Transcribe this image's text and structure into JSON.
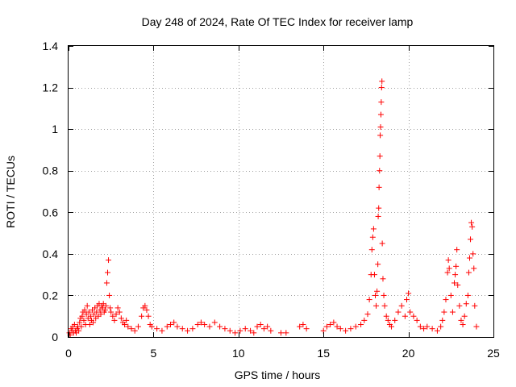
{
  "chart_data": {
    "type": "scatter",
    "title": "Day 248 of 2024, Rate Of TEC Index for receiver lamp",
    "xlabel": "GPS time / hours",
    "ylabel": "ROTI / TECUs",
    "xlim": [
      0,
      25
    ],
    "ylim": [
      0,
      1.4
    ],
    "xticks": [
      "0",
      "5",
      "10",
      "15",
      "20",
      "25"
    ],
    "yticks": [
      "0",
      "0.2",
      "0.4",
      "0.6",
      "0.8",
      "1",
      "1.2",
      "1.4"
    ],
    "grid": true,
    "marker": "+",
    "color": "#ff0000",
    "series": [
      {
        "points": [
          [
            0.05,
            0.02
          ],
          [
            0.1,
            0.01
          ],
          [
            0.15,
            0.04
          ],
          [
            0.2,
            0.03
          ],
          [
            0.25,
            0.05
          ],
          [
            0.3,
            0.02
          ],
          [
            0.35,
            0.06
          ],
          [
            0.4,
            0.03
          ],
          [
            0.45,
            0.02
          ],
          [
            0.5,
            0.04
          ],
          [
            0.55,
            0.05
          ],
          [
            0.6,
            0.03
          ],
          [
            0.65,
            0.07
          ],
          [
            0.7,
            0.09
          ],
          [
            0.75,
            0.05
          ],
          [
            0.8,
            0.1
          ],
          [
            0.85,
            0.12
          ],
          [
            0.9,
            0.08
          ],
          [
            0.95,
            0.13
          ],
          [
            1.0,
            0.06
          ],
          [
            1.05,
            0.11
          ],
          [
            1.1,
            0.15
          ],
          [
            1.15,
            0.09
          ],
          [
            1.2,
            0.12
          ],
          [
            1.25,
            0.06
          ],
          [
            1.3,
            0.1
          ],
          [
            1.35,
            0.08
          ],
          [
            1.4,
            0.13
          ],
          [
            1.45,
            0.07
          ],
          [
            1.5,
            0.11
          ],
          [
            1.55,
            0.14
          ],
          [
            1.6,
            0.09
          ],
          [
            1.65,
            0.12
          ],
          [
            1.7,
            0.15
          ],
          [
            1.75,
            0.1
          ],
          [
            1.8,
            0.16
          ],
          [
            1.85,
            0.13
          ],
          [
            1.9,
            0.11
          ],
          [
            1.95,
            0.15
          ],
          [
            2.0,
            0.14
          ],
          [
            2.05,
            0.16
          ],
          [
            2.1,
            0.12
          ],
          [
            2.15,
            0.13
          ],
          [
            2.2,
            0.15
          ],
          [
            2.25,
            0.26
          ],
          [
            2.3,
            0.31
          ],
          [
            2.35,
            0.37
          ],
          [
            2.4,
            0.2
          ],
          [
            2.45,
            0.14
          ],
          [
            2.5,
            0.12
          ],
          [
            2.6,
            0.1
          ],
          [
            2.7,
            0.08
          ],
          [
            2.8,
            0.11
          ],
          [
            2.9,
            0.14
          ],
          [
            3.0,
            0.12
          ],
          [
            3.1,
            0.09
          ],
          [
            3.2,
            0.07
          ],
          [
            3.3,
            0.06
          ],
          [
            3.4,
            0.08
          ],
          [
            3.5,
            0.05
          ],
          [
            3.7,
            0.04
          ],
          [
            3.9,
            0.03
          ],
          [
            4.1,
            0.05
          ],
          [
            4.3,
            0.1
          ],
          [
            4.4,
            0.14
          ],
          [
            4.5,
            0.15
          ],
          [
            4.6,
            0.13
          ],
          [
            4.7,
            0.1
          ],
          [
            4.8,
            0.06
          ],
          [
            4.9,
            0.05
          ],
          [
            5.2,
            0.04
          ],
          [
            5.5,
            0.03
          ],
          [
            5.8,
            0.05
          ],
          [
            6.0,
            0.06
          ],
          [
            6.2,
            0.07
          ],
          [
            6.4,
            0.05
          ],
          [
            6.7,
            0.04
          ],
          [
            7.0,
            0.03
          ],
          [
            7.3,
            0.04
          ],
          [
            7.6,
            0.06
          ],
          [
            7.8,
            0.07
          ],
          [
            8.0,
            0.06
          ],
          [
            8.3,
            0.05
          ],
          [
            8.6,
            0.07
          ],
          [
            8.9,
            0.05
          ],
          [
            9.2,
            0.04
          ],
          [
            9.5,
            0.03
          ],
          [
            9.8,
            0.02
          ],
          [
            10.1,
            0.03
          ],
          [
            10.4,
            0.04
          ],
          [
            10.7,
            0.03
          ],
          [
            10.9,
            0.02
          ],
          [
            11.1,
            0.05
          ],
          [
            11.3,
            0.06
          ],
          [
            11.5,
            0.04
          ],
          [
            11.7,
            0.05
          ],
          [
            11.9,
            0.03
          ],
          [
            12.5,
            0.02
          ],
          [
            12.8,
            0.02
          ],
          [
            13.6,
            0.05
          ],
          [
            13.8,
            0.06
          ],
          [
            14.0,
            0.04
          ],
          [
            15.0,
            0.03
          ],
          [
            15.2,
            0.05
          ],
          [
            15.4,
            0.06
          ],
          [
            15.6,
            0.07
          ],
          [
            15.8,
            0.05
          ],
          [
            16.0,
            0.04
          ],
          [
            16.3,
            0.03
          ],
          [
            16.6,
            0.04
          ],
          [
            16.9,
            0.05
          ],
          [
            17.2,
            0.06
          ],
          [
            17.4,
            0.08
          ],
          [
            17.6,
            0.11
          ],
          [
            17.7,
            0.18
          ],
          [
            17.8,
            0.3
          ],
          [
            17.85,
            0.42
          ],
          [
            17.9,
            0.48
          ],
          [
            17.95,
            0.52
          ],
          [
            18.0,
            0.3
          ],
          [
            18.05,
            0.2
          ],
          [
            18.1,
            0.15
          ],
          [
            18.15,
            0.22
          ],
          [
            18.2,
            0.35
          ],
          [
            18.22,
            0.58
          ],
          [
            18.25,
            0.62
          ],
          [
            18.27,
            0.72
          ],
          [
            18.3,
            0.8
          ],
          [
            18.32,
            0.87
          ],
          [
            18.34,
            0.97
          ],
          [
            18.36,
            1.01
          ],
          [
            18.38,
            1.07
          ],
          [
            18.4,
            1.13
          ],
          [
            18.42,
            1.2
          ],
          [
            18.44,
            1.23
          ],
          [
            18.46,
            0.45
          ],
          [
            18.5,
            0.28
          ],
          [
            18.55,
            0.2
          ],
          [
            18.6,
            0.15
          ],
          [
            18.7,
            0.1
          ],
          [
            18.8,
            0.08
          ],
          [
            18.9,
            0.06
          ],
          [
            19.0,
            0.05
          ],
          [
            19.2,
            0.08
          ],
          [
            19.4,
            0.12
          ],
          [
            19.6,
            0.15
          ],
          [
            19.8,
            0.1
          ],
          [
            19.9,
            0.18
          ],
          [
            20.0,
            0.21
          ],
          [
            20.1,
            0.12
          ],
          [
            20.3,
            0.1
          ],
          [
            20.5,
            0.08
          ],
          [
            20.7,
            0.05
          ],
          [
            20.9,
            0.04
          ],
          [
            21.1,
            0.05
          ],
          [
            21.4,
            0.04
          ],
          [
            21.7,
            0.03
          ],
          [
            21.9,
            0.05
          ],
          [
            22.0,
            0.08
          ],
          [
            22.1,
            0.12
          ],
          [
            22.2,
            0.18
          ],
          [
            22.3,
            0.31
          ],
          [
            22.35,
            0.37
          ],
          [
            22.4,
            0.33
          ],
          [
            22.5,
            0.2
          ],
          [
            22.6,
            0.12
          ],
          [
            22.7,
            0.26
          ],
          [
            22.75,
            0.3
          ],
          [
            22.8,
            0.34
          ],
          [
            22.85,
            0.42
          ],
          [
            22.9,
            0.25
          ],
          [
            23.0,
            0.15
          ],
          [
            23.1,
            0.08
          ],
          [
            23.2,
            0.06
          ],
          [
            23.3,
            0.1
          ],
          [
            23.4,
            0.16
          ],
          [
            23.5,
            0.2
          ],
          [
            23.55,
            0.31
          ],
          [
            23.6,
            0.38
          ],
          [
            23.65,
            0.47
          ],
          [
            23.7,
            0.55
          ],
          [
            23.75,
            0.53
          ],
          [
            23.8,
            0.4
          ],
          [
            23.85,
            0.33
          ],
          [
            23.9,
            0.15
          ],
          [
            24.0,
            0.05
          ]
        ]
      }
    ]
  }
}
